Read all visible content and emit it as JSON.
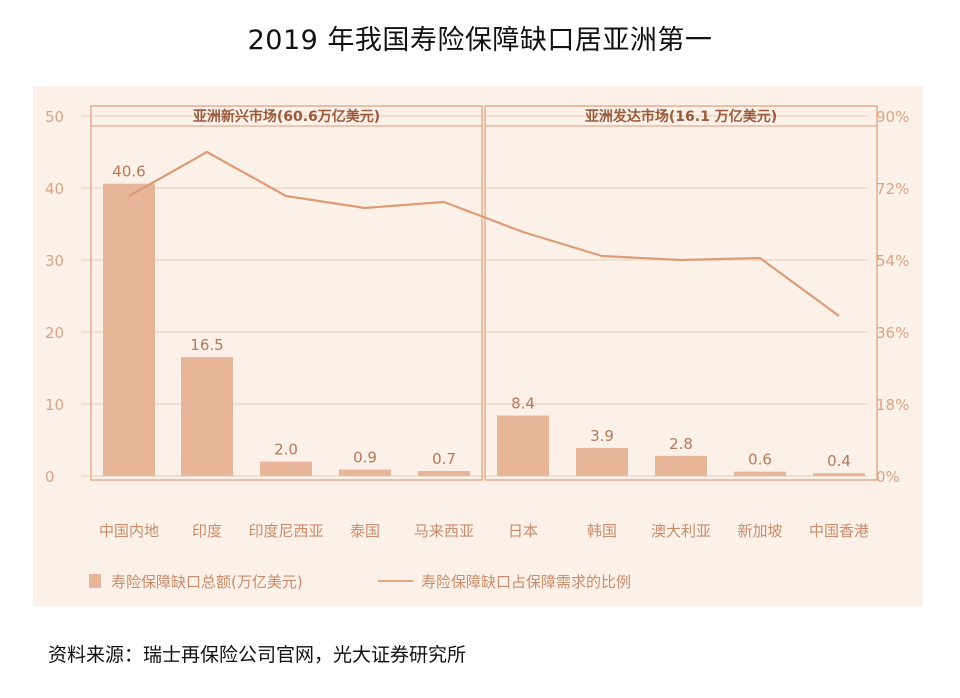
{
  "header": {
    "title": "2019 年我国寿险保障缺口居亚洲第一"
  },
  "footer": {
    "source": "资料来源：瑞士再保险公司官网，光大证券研究所"
  },
  "colors": {
    "panel_bg": "#fbf1e9",
    "bar": "#e7b699",
    "line": "#dc9c78",
    "grid": "#f0d7c6",
    "axis_text": "#d9a486",
    "group_border": "#e2ad91"
  },
  "chart_data": {
    "type": "bar",
    "categories": [
      "中国内地",
      "印度",
      "印度尼西亚",
      "泰国",
      "马来西亚",
      "日本",
      "韩国",
      "澳大利亚",
      "新加坡",
      "中国香港"
    ],
    "series": [
      {
        "name": "寿险保障缺口总额(万亿美元)",
        "type": "bar",
        "axis": "left",
        "values": [
          40.6,
          16.5,
          2.0,
          0.9,
          0.7,
          8.4,
          3.9,
          2.8,
          0.6,
          0.4
        ],
        "labels": [
          "40.6",
          "16.5",
          "2.0",
          "0.9",
          "0.7",
          "8.4",
          "3.9",
          "2.8",
          "0.6",
          "0.4"
        ]
      },
      {
        "name": "寿险保障缺口占保障需求的比例",
        "type": "line",
        "axis": "right",
        "values": [
          70,
          81,
          70,
          67,
          68.5,
          61,
          55,
          54,
          54.5,
          40
        ]
      }
    ],
    "groups": [
      {
        "label": "亚洲新兴市场(60.6万亿美元)",
        "start": 0,
        "end": 4
      },
      {
        "label": "亚洲发达市场(16.1 万亿美元)",
        "start": 5,
        "end": 9
      }
    ],
    "y_left": {
      "min": 0,
      "max": 50,
      "ticks": [
        "0",
        "10",
        "20",
        "30",
        "40",
        "50"
      ]
    },
    "y_right": {
      "min": 0,
      "max": 90,
      "ticks": [
        "0%",
        "18%",
        "36%",
        "54%",
        "72%",
        "90%"
      ]
    },
    "grid": true,
    "legend_position": "bottom"
  }
}
